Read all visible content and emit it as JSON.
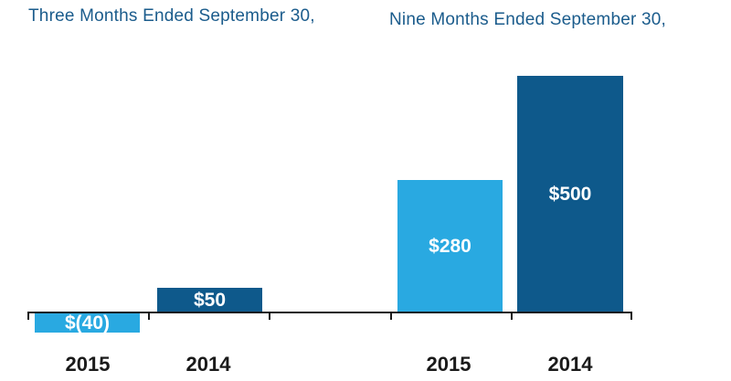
{
  "colors": {
    "series_2015": "#29a9e1",
    "series_2014": "#0e598b",
    "group_title": "#1b5c8c",
    "axis": "#1a1a1a",
    "value_label": "#ffffff",
    "category_label": "#1a1a1a",
    "background": "#ffffff"
  },
  "chart_data": {
    "type": "bar",
    "groups": [
      {
        "title": "Three Months Ended September 30,",
        "categories": [
          "2015",
          "2014"
        ],
        "values": [
          -40,
          50
        ],
        "value_labels": [
          "$(40)",
          "$50"
        ]
      },
      {
        "title": "Nine Months Ended September 30,",
        "categories": [
          "2015",
          "2014"
        ],
        "values": [
          280,
          500
        ],
        "value_labels": [
          "$280",
          "$500"
        ]
      }
    ],
    "ylim": [
      -60,
      520
    ],
    "layout": {
      "gridlines": false,
      "legend": false,
      "y_axis_labels": false,
      "value_label_position": "inside-bar",
      "baseline_segments": 5,
      "negative_bars_below_baseline": true
    }
  }
}
